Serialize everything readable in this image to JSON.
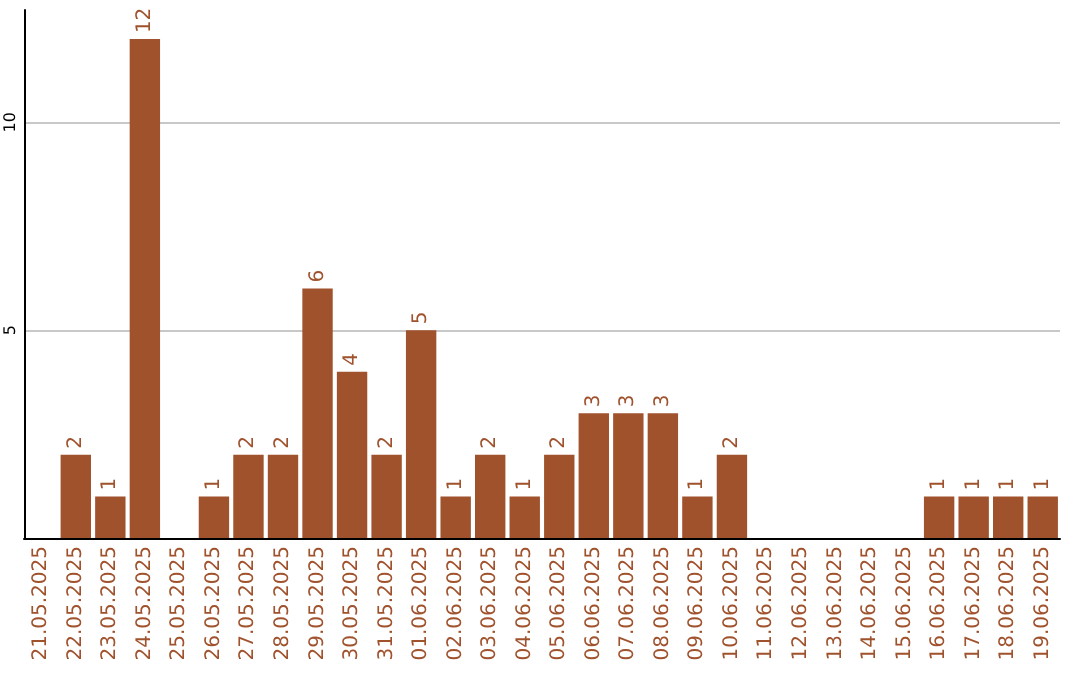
{
  "chart_data": {
    "type": "bar",
    "categories": [
      "21.05.2025",
      "22.05.2025",
      "23.05.2025",
      "24.05.2025",
      "25.05.2025",
      "26.05.2025",
      "27.05.2025",
      "28.05.2025",
      "29.05.2025",
      "30.05.2025",
      "31.05.2025",
      "01.06.2025",
      "02.06.2025",
      "03.06.2025",
      "04.06.2025",
      "05.06.2025",
      "06.06.2025",
      "07.06.2025",
      "08.06.2025",
      "09.06.2025",
      "10.06.2025",
      "11.06.2025",
      "12.06.2025",
      "13.06.2025",
      "14.06.2025",
      "15.06.2025",
      "16.06.2025",
      "17.06.2025",
      "18.06.2025",
      "19.06.2025"
    ],
    "values": [
      0,
      2,
      1,
      12,
      0,
      1,
      2,
      2,
      6,
      4,
      2,
      5,
      1,
      2,
      1,
      2,
      3,
      3,
      3,
      1,
      2,
      0,
      0,
      0,
      0,
      0,
      1,
      1,
      1,
      1
    ],
    "value_labels": [
      null,
      "2",
      "1",
      "12",
      null,
      "1",
      "2",
      "2",
      "6",
      "4",
      "2",
      "5",
      "1",
      "2",
      "1",
      "2",
      "3",
      "3",
      "3",
      "1",
      "2",
      null,
      null,
      null,
      null,
      null,
      "1",
      "1",
      "1",
      "1"
    ],
    "color": "#a0522d",
    "ylim": [
      0,
      12.7
    ],
    "yticks": [
      5,
      10
    ],
    "grid": "y"
  }
}
